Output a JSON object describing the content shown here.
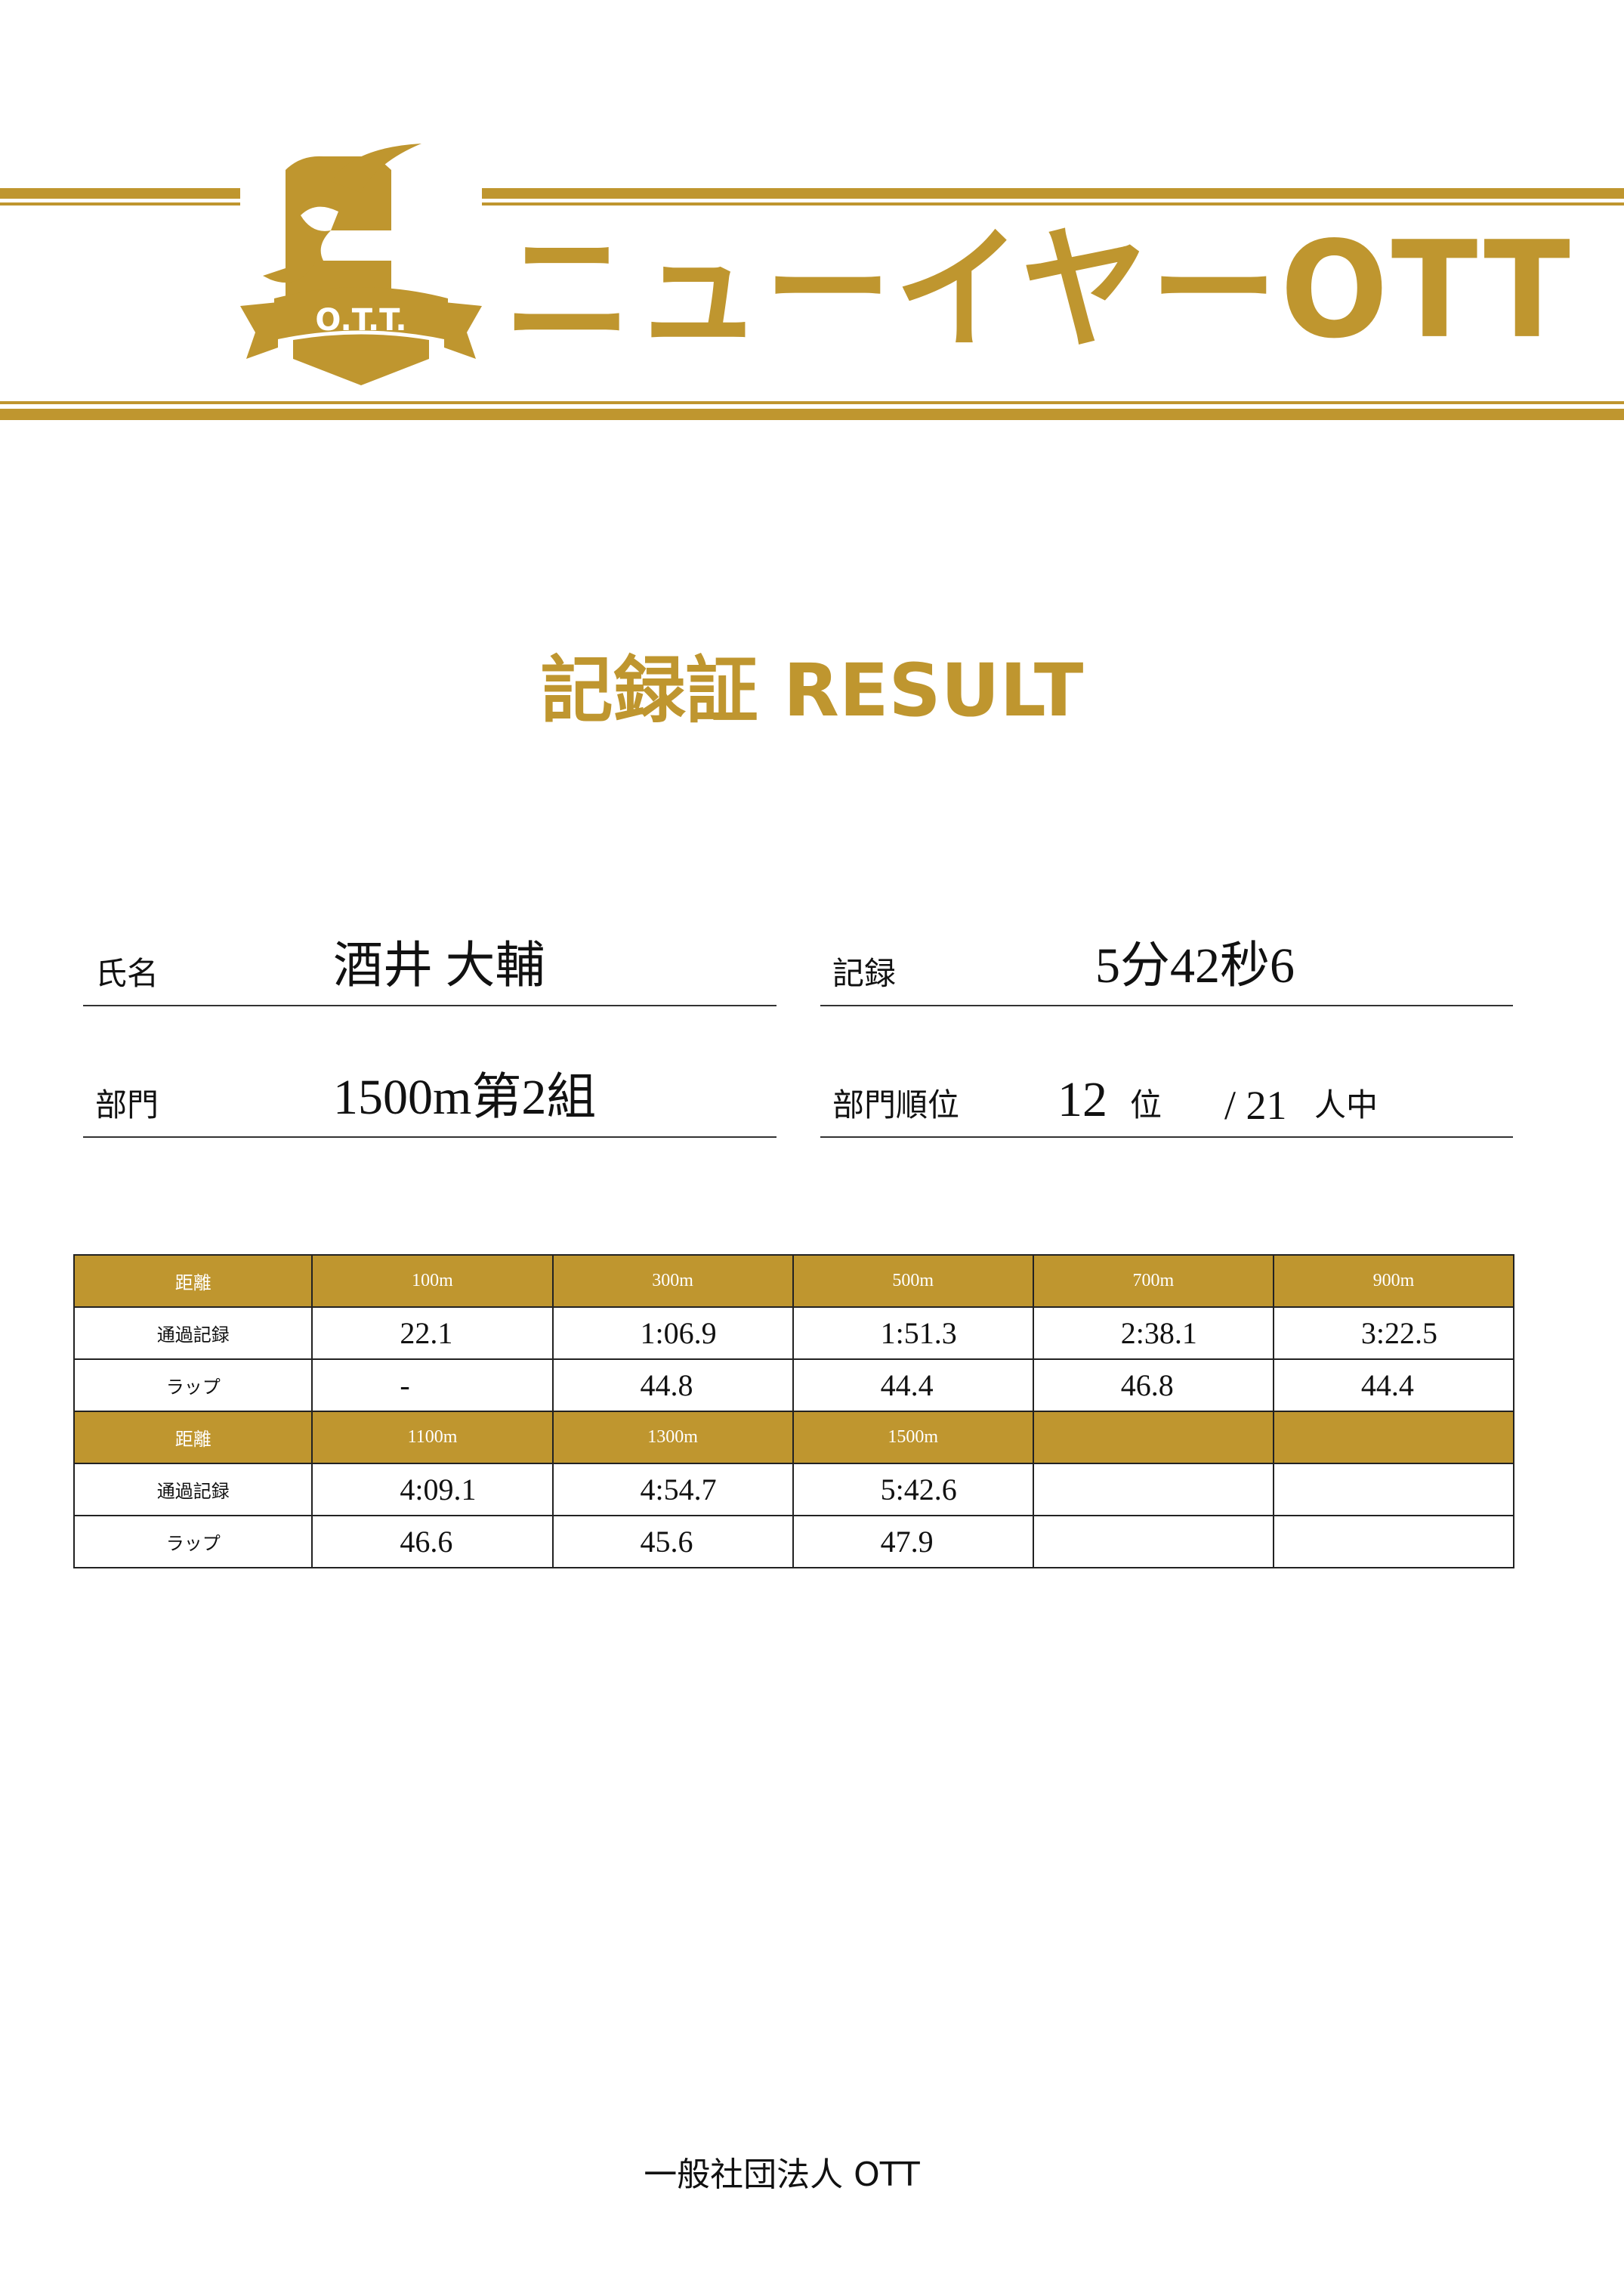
{
  "header": {
    "logo_text": "O.T.T.",
    "brand_title": "ニューイヤーOTT",
    "brand_colors": {
      "gold": "#BF962F",
      "red": "#C8161D"
    }
  },
  "title": "記録証 RESULT",
  "fields": {
    "name_label": "氏名",
    "name_value": "酒井 大輔",
    "record_label": "記録",
    "record_value": "5分42秒6",
    "division_label": "部門",
    "division_value": "1500m第2組",
    "rank_label": "部門順位",
    "rank_value": "12",
    "rank_unit": "位",
    "rank_total": "/ 21",
    "rank_total_unit": "人中"
  },
  "splits": {
    "row_labels": {
      "distance": "距離",
      "passing": "通過記録",
      "lap": "ラップ"
    },
    "blocks": [
      {
        "distances": [
          "100m",
          "300m",
          "500m",
          "700m",
          "900m"
        ],
        "passing": [
          "22.1",
          "1:06.9",
          "1:51.3",
          "2:38.1",
          "3:22.5"
        ],
        "laps": [
          "-",
          "44.8",
          "44.4",
          "46.8",
          "44.4"
        ]
      },
      {
        "distances": [
          "1100m",
          "1300m",
          "1500m",
          "",
          ""
        ],
        "passing": [
          "4:09.1",
          "4:54.7",
          "5:42.6",
          "",
          ""
        ],
        "laps": [
          "46.6",
          "45.6",
          "47.9",
          "",
          ""
        ]
      }
    ]
  },
  "footer": "一般社団法人 OTT"
}
